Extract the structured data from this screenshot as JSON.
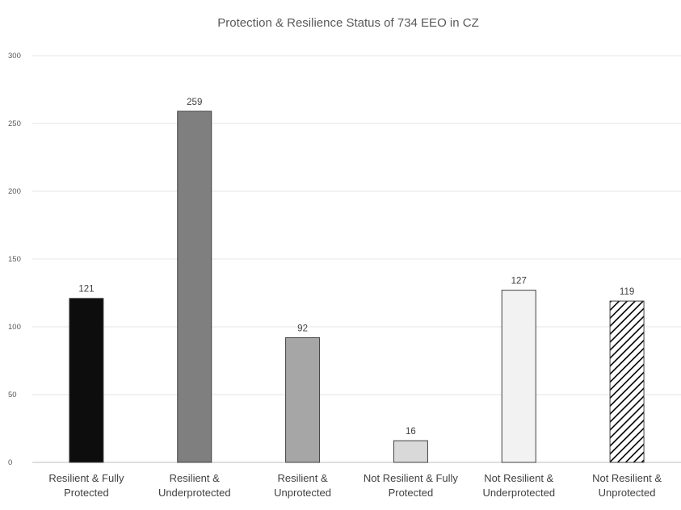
{
  "chart_data": {
    "type": "bar",
    "title": "Protection & Resilience Status of 734 EEO in CZ",
    "xlabel": "",
    "ylabel": "",
    "ylim": [
      0,
      300
    ],
    "yticks": [
      0,
      50,
      100,
      150,
      200,
      250,
      300
    ],
    "grid": true,
    "legend": "none",
    "categories": [
      [
        "Resilient & Fully",
        "Protected"
      ],
      [
        "Resilient &",
        "Underprotected"
      ],
      [
        "Resilient &",
        "Unprotected"
      ],
      [
        "Not Resilient & Fully",
        "Protected"
      ],
      [
        "Not Resilient &",
        "Underprotected"
      ],
      [
        "Not Resilient &",
        "Unprotected"
      ]
    ],
    "values": [
      121,
      259,
      92,
      16,
      127,
      119
    ],
    "data_labels": [
      "121",
      "259",
      "92",
      "16",
      "127",
      "119"
    ],
    "bar_fills": [
      "#0d0d0d",
      "#7f7f7f",
      "#a6a6a6",
      "#d9d9d9",
      "#f2f2f2",
      "hatch"
    ],
    "bar_stroke": "#404040"
  }
}
